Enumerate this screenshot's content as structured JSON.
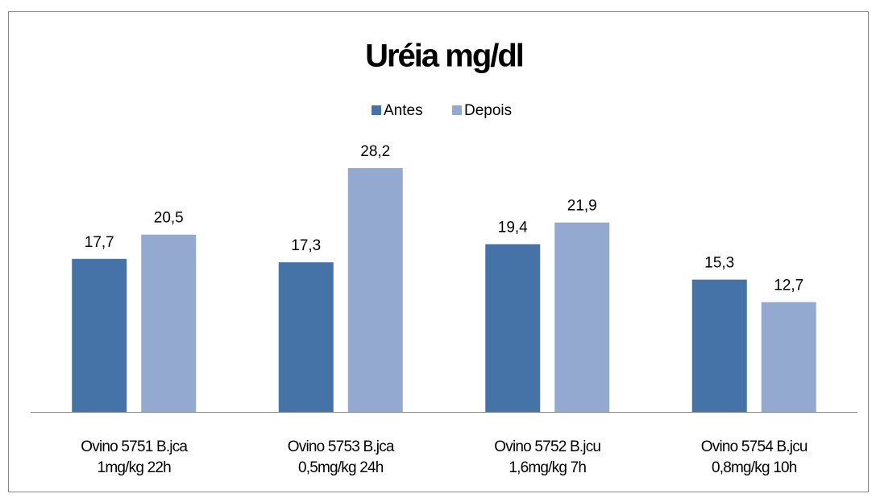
{
  "chart_data": {
    "type": "bar",
    "title": "Uréia mg/dl",
    "categories": [
      [
        "Ovino 5751 B.jca",
        "1mg/kg   22h"
      ],
      [
        "Ovino 5753 B.jca",
        "0,5mg/kg   24h"
      ],
      [
        "Ovino 5752 B.jcu",
        "1,6mg/kg   7h"
      ],
      [
        "Ovino 5754 B.jcu",
        "0,8mg/kg   10h"
      ]
    ],
    "series": [
      {
        "name": "Antes",
        "color": "#4572a7",
        "values": [
          17.7,
          17.3,
          19.4,
          15.3
        ],
        "value_labels": [
          "17,7",
          "17,3",
          "19,4",
          "15,3"
        ]
      },
      {
        "name": "Depois",
        "color": "#93a9cf",
        "values": [
          20.5,
          28.2,
          21.9,
          12.7
        ],
        "value_labels": [
          "20,5",
          "28,2",
          "21,9",
          "12,7"
        ]
      }
    ],
    "ylim": [
      0,
      30
    ],
    "legend": "top"
  }
}
